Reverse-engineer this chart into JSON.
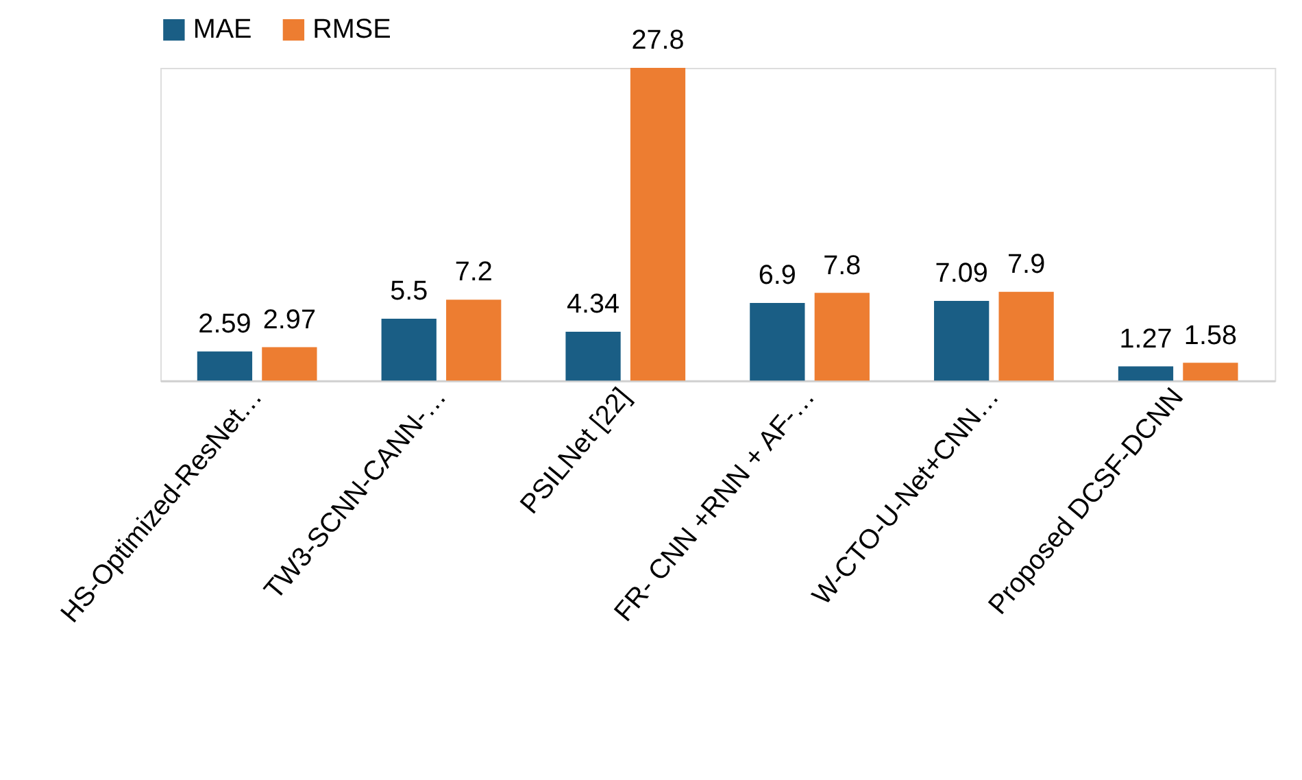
{
  "chart_data": {
    "type": "bar",
    "categories": [
      "HS-Optimized-ResNet…",
      "TW3-SCNN-CANN-…",
      "PSILNet [22]",
      "FR- CNN +RNN + AF-…",
      "W-CTO-U-Net+CNN…",
      "Proposed DCSF-DCNN"
    ],
    "series": [
      {
        "name": "MAE",
        "color": "#1a5e85",
        "values": [
          2.59,
          5.5,
          4.34,
          6.9,
          7.09,
          1.27
        ]
      },
      {
        "name": "RMSE",
        "color": "#ed7d31",
        "values": [
          2.97,
          7.2,
          27.8,
          7.8,
          7.9,
          1.58
        ]
      }
    ],
    "data_labels": true,
    "legend": "top",
    "grid": false
  }
}
